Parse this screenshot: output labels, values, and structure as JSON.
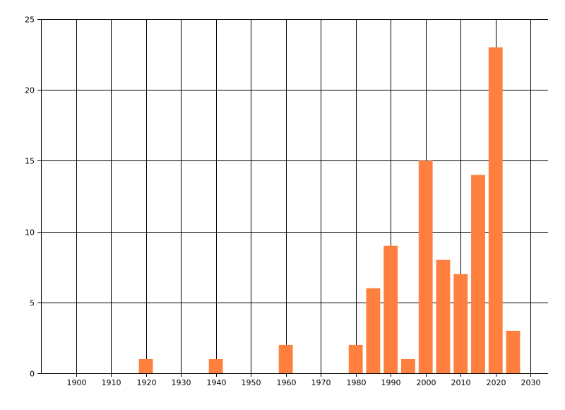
{
  "chart_data": {
    "type": "bar",
    "title": "",
    "xlabel": "",
    "ylabel": "",
    "x": [
      1920,
      1940,
      1960,
      1980,
      1985,
      1990,
      1995,
      2000,
      2005,
      2010,
      2015,
      2020,
      2025
    ],
    "values": [
      1,
      1,
      2,
      2,
      6,
      9,
      1,
      15,
      8,
      7,
      14,
      23,
      3
    ],
    "xlim": [
      1890,
      2035
    ],
    "ylim": [
      0,
      25
    ],
    "x_ticks": [
      "1900",
      "1910",
      "1920",
      "1930",
      "1940",
      "1950",
      "1960",
      "1970",
      "1980",
      "1990",
      "2000",
      "2010",
      "2020",
      "2030"
    ],
    "y_ticks": [
      "0",
      "5",
      "10",
      "15",
      "20",
      "25"
    ],
    "grid": true,
    "bar_width_years": 4,
    "bar_color": "#FF7F3F",
    "grid_color": "#000000"
  }
}
